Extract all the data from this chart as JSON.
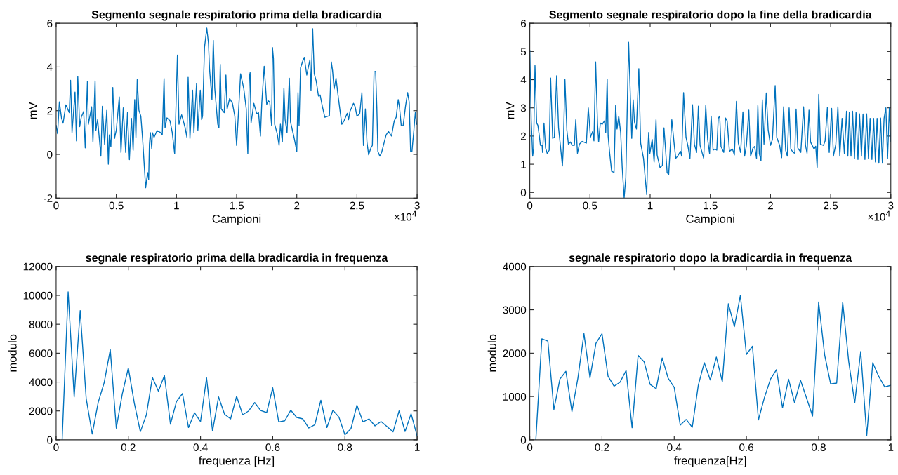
{
  "chart_data": [
    {
      "type": "line",
      "title": "Segmento segnale respiratorio prima della bradicardia",
      "xlabel": "Campioni",
      "ylabel": "mV",
      "annotations": [
        "×10$^{4}$"
      ],
      "x": [
        0,
        0.012,
        0.027,
        0.045,
        0.058,
        0.081,
        0.109,
        0.12,
        0.132,
        0.157,
        0.169,
        0.18,
        0.196,
        0.209,
        0.229,
        0.242,
        0.26,
        0.268,
        0.295,
        0.306,
        0.324,
        0.331,
        0.345,
        0.372,
        0.384,
        0.403,
        0.421,
        0.434,
        0.442,
        0.455,
        0.471,
        0.485,
        0.5,
        0.525,
        0.539,
        0.558,
        0.578,
        0.593,
        0.609,
        0.626,
        0.64,
        0.653,
        0.663,
        0.674,
        0.688,
        0.704,
        0.719,
        0.744,
        0.76,
        0.769,
        0.775,
        0.783,
        0.795,
        0.8,
        0.814,
        0.839,
        0.868,
        0.882,
        0.897,
        0.905,
        0.921,
        0.946,
        0.965,
        0.985,
        1.008,
        1.021,
        1.043,
        1.072,
        1.087,
        1.097,
        1.112,
        1.134,
        1.145,
        1.167,
        1.178,
        1.198,
        1.209,
        1.217,
        1.233,
        1.252,
        1.266,
        1.275,
        1.295,
        1.306,
        1.318,
        1.343,
        1.353,
        1.364,
        1.372,
        1.397,
        1.411,
        1.421,
        1.442,
        1.465,
        1.485,
        1.5,
        1.518,
        1.533,
        1.56,
        1.58,
        1.593,
        1.605,
        1.612,
        1.62,
        1.643,
        1.667,
        1.682,
        1.698,
        1.709,
        1.729,
        1.75,
        1.764,
        1.775,
        1.791,
        1.798,
        1.806,
        1.816,
        1.837,
        1.853,
        1.864,
        1.88,
        1.893,
        1.903,
        1.919,
        1.938,
        1.948,
        1.977,
        2,
        2.01,
        2.019,
        2.031,
        2.05,
        2.062,
        2.083,
        2.109,
        2.118,
        2.132,
        2.145,
        2.161,
        2.18,
        2.194,
        2.213,
        2.233,
        2.271,
        2.287,
        2.297,
        2.31,
        2.326,
        2.345,
        2.374,
        2.393,
        2.419,
        2.43,
        2.442,
        2.471,
        2.485,
        2.5,
        2.523,
        2.541,
        2.554,
        2.57,
        2.583,
        2.597,
        2.616,
        2.628,
        2.642,
        2.655,
        2.665,
        2.674,
        2.69,
        2.705,
        2.717,
        2.742,
        2.762,
        2.787,
        2.81,
        2.826,
        2.843,
        2.853,
        2.868,
        2.884,
        2.903,
        2.921,
        2.934,
        2.946,
        2.957,
        2.973,
        2.985,
        2.996
      ],
      "series": [
        {
          "color": "#0072bd",
          "values": [
            1.32,
            0.95,
            2.4,
            1.65,
            1.43,
            2.27,
            1.91,
            3.39,
            1.0,
            2.85,
            0.62,
            3.56,
            1.27,
            1.7,
            1.97,
            0.3,
            3.34,
            1.38,
            2.18,
            0.57,
            3.37,
            1.11,
            1.59,
            -0.08,
            2.2,
            0.46,
            2.02,
            -0.45,
            0.89,
            0.35,
            3.06,
            0.73,
            1.11,
            2.63,
            0.09,
            2.13,
            0.09,
            1.91,
            -0.24,
            1.65,
            0.19,
            2.51,
            0.78,
            3.42,
            2.02,
            1.75,
            0.68,
            -1.53,
            -0.83,
            -1.15,
            0.46,
            1.0,
            0.25,
            1.0,
            0.78,
            1.09,
            1.0,
            0.89,
            3.47,
            1.22,
            1.67,
            1.54,
            1.0,
            0.03,
            4.55,
            1.38,
            1.81,
            1.22,
            0.78,
            3.53,
            0.73,
            2.94,
            1.0,
            3.24,
            1.11,
            2.94,
            1.59,
            1.75,
            4.89,
            5.78,
            5.09,
            3.9,
            2.51,
            5.22,
            3.04,
            1.38,
            1.22,
            4.12,
            2.08,
            1.91,
            3.63,
            2.08,
            2.56,
            2.34,
            1.75,
            0.41,
            2.18,
            3.69,
            2.99,
            2.08,
            0.03,
            3.53,
            3.74,
            1.43,
            2.34,
            1.86,
            1.91,
            0.84,
            2.34,
            4.03,
            2.29,
            2.45,
            2.4,
            1.32,
            4.89,
            4.39,
            1.38,
            0.95,
            0.41,
            1.38,
            0.57,
            3.04,
            1.59,
            1.0,
            3.49,
            1.48,
            0.78,
            0.14,
            2.83,
            1.32,
            3.96,
            4.28,
            4.44,
            3.63,
            4.33,
            2.94,
            5.75,
            3.69,
            3.37,
            2.67,
            2.72,
            2.18,
            1.7,
            1.77,
            4.23,
            3.85,
            2.99,
            3.49,
            2.61,
            1.38,
            1.54,
            1.88,
            1.59,
            1.97,
            2.34,
            2.18,
            1.75,
            1.86,
            2.83,
            0.41,
            2.08,
            0.57,
            -0.02,
            0.3,
            0.41,
            3.77,
            3.8,
            2.18,
            0.14,
            -0.08,
            0.09,
            0.35,
            0.89,
            1.05,
            0.84,
            1.54,
            1.7,
            2.51,
            2.18,
            1.32,
            1.32,
            2.18,
            2.83,
            2.4,
            0.14,
            0.14,
            1.11,
            1.91,
            1.38
          ]
        }
      ],
      "xlim": [
        0,
        3
      ],
      "ylim": [
        -2,
        6
      ],
      "xticks": [
        0,
        0.5,
        1,
        1.5,
        2,
        2.5,
        3
      ],
      "yticks": [
        -2,
        0,
        2,
        4,
        6
      ]
    },
    {
      "type": "line",
      "title": "Segmento segnale respiratorio dopo la fine della bradicardia",
      "xlabel": "Campioni",
      "ylabel": "mV",
      "annotations": [
        "×10$^{4}$"
      ],
      "x": [
        0,
        0.012,
        0.024,
        0.031,
        0.043,
        0.057,
        0.067,
        0.078,
        0.088,
        0.102,
        0.106,
        0.118,
        0.131,
        0.145,
        0.161,
        0.173,
        0.19,
        0.204,
        0.223,
        0.239,
        0.259,
        0.271,
        0.278,
        0.292,
        0.308,
        0.321,
        0.337,
        0.353,
        0.37,
        0.382,
        0.396,
        0.412,
        0.435,
        0.47,
        0.486,
        0.504,
        0.523,
        0.533,
        0.547,
        0.563,
        0.572,
        0.586,
        0.602,
        0.621,
        0.631,
        0.643,
        0.651,
        0.664,
        0.68,
        0.7,
        0.713,
        0.725,
        0.739,
        0.755,
        0.768,
        0.784,
        0.798,
        0.821,
        0.847,
        0.859,
        0.87,
        0.886,
        0.906,
        0.921,
        0.945,
        0.96,
        0.972,
        0.98,
        0.988,
        0.998,
        1.017,
        1.033,
        1.049,
        1.058,
        1.082,
        1.102,
        1.115,
        1.125,
        1.141,
        1.154,
        1.18,
        1.2,
        1.213,
        1.229,
        1.252,
        1.262,
        1.278,
        1.298,
        1.313,
        1.331,
        1.352,
        1.368,
        1.386,
        1.401,
        1.415,
        1.445,
        1.462,
        1.478,
        1.494,
        1.507,
        1.523,
        1.539,
        1.554,
        1.566,
        1.578,
        1.589,
        1.612,
        1.626,
        1.64,
        1.659,
        1.684,
        1.7,
        1.717,
        1.733,
        1.752,
        1.771,
        1.785,
        1.8,
        1.82,
        1.835,
        1.855,
        1.868,
        1.884,
        1.895,
        1.907,
        1.921,
        1.932,
        1.946,
        1.965,
        1.981,
        2,
        2.016,
        2.039,
        2.052,
        2.076,
        2.093,
        2.109,
        2.126,
        2.14,
        2.155,
        2.169,
        2.188,
        2.202,
        2.213,
        2.227,
        2.252,
        2.275,
        2.291,
        2.304,
        2.32,
        2.333,
        2.362,
        2.376,
        2.388,
        2.401,
        2.415,
        2.44,
        2.454,
        2.473,
        2.488,
        2.508,
        2.523,
        2.543,
        2.56,
        2.576,
        2.595,
        2.614,
        2.632,
        2.643,
        2.655,
        2.669,
        2.682,
        2.698,
        2.711,
        2.727,
        2.74,
        2.756,
        2.769,
        2.785,
        2.799,
        2.814,
        2.828,
        2.843,
        2.857,
        2.872,
        2.886,
        2.901,
        2.915,
        2.93,
        2.944,
        2.959,
        2.973,
        2.988,
        3
      ],
      "series": [
        {
          "color": "#0072bd",
          "values": [
            5.04,
            2.54,
            1.29,
            1.54,
            4.5,
            2.46,
            2.38,
            2.04,
            1.67,
            1.67,
            1.42,
            2.46,
            1.58,
            1.38,
            1.5,
            4.06,
            1.92,
            1.96,
            4.14,
            2.29,
            1.46,
            0.94,
            1.54,
            4.0,
            2.21,
            1.71,
            1.79,
            1.67,
            1.67,
            2.58,
            1.39,
            1.71,
            1.81,
            1.75,
            3.0,
            1.96,
            2.17,
            1.83,
            4.63,
            2.42,
            1.79,
            2.46,
            2.42,
            2.54,
            2.13,
            4.03,
            2.0,
            1.38,
            0.75,
            0.71,
            3.08,
            2.25,
            2.71,
            2.13,
            0.88,
            -0.19,
            0.54,
            5.33,
            1.92,
            3.29,
            2.5,
            2.25,
            4.39,
            1.75,
            1.21,
            0.46,
            -0.08,
            1.42,
            2.13,
            1.39,
            1.88,
            1.08,
            2.58,
            1.33,
            0.88,
            0.96,
            2.29,
            1.71,
            0.71,
            0.63,
            2.58,
            1.71,
            1.21,
            1.29,
            1.46,
            1.29,
            3.54,
            1.96,
            1.67,
            1.21,
            3.11,
            1.71,
            1.42,
            3.06,
            1.67,
            1.21,
            3.08,
            1.88,
            1.38,
            2.71,
            1.5,
            1.54,
            1.5,
            2.63,
            2.71,
            1.63,
            1.42,
            2.64,
            2.54,
            1.46,
            1.54,
            1.33,
            3.23,
            1.75,
            1.42,
            2.86,
            1.29,
            1.67,
            2.92,
            1.29,
            1.58,
            1.63,
            1.21,
            3.08,
            1.38,
            1.13,
            3.29,
            1.71,
            3.53,
            2.21,
            1.67,
            1.88,
            3.79,
            1.96,
            1.67,
            1.23,
            3.04,
            1.5,
            1.29,
            3.0,
            1.54,
            1.42,
            1.39,
            2.96,
            1.58,
            1.42,
            3.04,
            1.67,
            1.39,
            2.92,
            1.79,
            1.54,
            1.64,
            0.88,
            3.48,
            1.71,
            1.67,
            1.83,
            3.02,
            1.42,
            2.98,
            1.29,
            1.71,
            3.04,
            1.29,
            2.63,
            1.38,
            2.88,
            1.29,
            2.83,
            1.29,
            2.88,
            1.21,
            2.83,
            1.17,
            2.79,
            1.29,
            2.78,
            1.17,
            2.79,
            1.21,
            2.63,
            1.17,
            2.63,
            1.08,
            2.63,
            1.04,
            2.64,
            1.04,
            2.63,
            3.0,
            1.21,
            3.0,
            1.79
          ]
        }
      ],
      "xlim": [
        0,
        3
      ],
      "ylim": [
        -0.2,
        6
      ],
      "xticks": [
        0,
        0.5,
        1,
        1.5,
        2,
        2.5,
        3
      ],
      "yticks": [
        0,
        1,
        2,
        3,
        4,
        5,
        6
      ]
    },
    {
      "type": "line",
      "title": "segnale respiratorio prima della bradicardia in frequenza",
      "xlabel": "frequenza [Hz]",
      "ylabel": "modulo",
      "x": [
        0.0167,
        0.0333,
        0.05,
        0.0667,
        0.0833,
        0.1,
        0.1167,
        0.1333,
        0.15,
        0.1667,
        0.1833,
        0.2,
        0.2167,
        0.2333,
        0.25,
        0.2667,
        0.2833,
        0.3,
        0.3167,
        0.3333,
        0.35,
        0.3667,
        0.3833,
        0.4,
        0.4167,
        0.4333,
        0.45,
        0.4667,
        0.4833,
        0.5,
        0.5167,
        0.5333,
        0.55,
        0.5667,
        0.5833,
        0.6,
        0.6167,
        0.6333,
        0.65,
        0.6667,
        0.6833,
        0.7,
        0.7167,
        0.7333,
        0.75,
        0.7667,
        0.7833,
        0.8,
        0.8167,
        0.8333,
        0.85,
        0.8667,
        0.8833,
        0.9,
        0.9167,
        0.9333,
        0.95,
        0.9667,
        0.9833,
        1
      ],
      "series": [
        {
          "color": "#0072bd",
          "values": [
            0,
            10240,
            2970,
            8950,
            2860,
            400,
            2610,
            3980,
            6240,
            810,
            3180,
            4980,
            2530,
            560,
            1730,
            4320,
            3370,
            4450,
            1080,
            2650,
            3210,
            850,
            1870,
            1270,
            4290,
            610,
            2970,
            1770,
            1450,
            3020,
            1730,
            2000,
            2580,
            2030,
            1890,
            3600,
            1240,
            1320,
            2050,
            1550,
            1450,
            820,
            1050,
            2740,
            850,
            2050,
            1580,
            350,
            770,
            2400,
            1240,
            1450,
            970,
            1270,
            920,
            550,
            2000,
            580,
            1810,
            270
          ]
        }
      ],
      "xlim": [
        0,
        1
      ],
      "ylim": [
        0,
        12000
      ],
      "xticks": [
        0,
        0.2,
        0.4,
        0.6,
        0.8,
        1
      ],
      "yticks": [
        0,
        2000,
        4000,
        6000,
        8000,
        10000,
        12000
      ]
    },
    {
      "type": "line",
      "title": "segnale respiratorio dopo la bradicardia in frequenza",
      "xlabel": "frequenza[Hz]",
      "ylabel": "modulo",
      "x": [
        0.0167,
        0.0333,
        0.05,
        0.0667,
        0.0833,
        0.1,
        0.1167,
        0.1333,
        0.15,
        0.1667,
        0.1833,
        0.2,
        0.2167,
        0.2333,
        0.25,
        0.2667,
        0.2833,
        0.3,
        0.3167,
        0.3333,
        0.35,
        0.3667,
        0.3833,
        0.4,
        0.4167,
        0.4333,
        0.45,
        0.4667,
        0.4833,
        0.5,
        0.5167,
        0.5333,
        0.55,
        0.5667,
        0.5833,
        0.6,
        0.6167,
        0.6333,
        0.65,
        0.6667,
        0.6833,
        0.7,
        0.7167,
        0.7333,
        0.75,
        0.7667,
        0.7833,
        0.8,
        0.8167,
        0.8333,
        0.85,
        0.8667,
        0.8833,
        0.9,
        0.9167,
        0.9333,
        0.95,
        0.9667,
        0.9833,
        1
      ],
      "series": [
        {
          "color": "#0072bd",
          "values": [
            0,
            2330,
            2280,
            700,
            1400,
            1580,
            650,
            1430,
            2450,
            1430,
            2230,
            2450,
            1470,
            1240,
            1330,
            1600,
            280,
            1950,
            1800,
            1280,
            1180,
            1890,
            1420,
            1210,
            340,
            470,
            290,
            1260,
            1780,
            1380,
            1910,
            1340,
            3140,
            2610,
            3330,
            1970,
            2160,
            460,
            980,
            1400,
            1620,
            740,
            1400,
            860,
            1370,
            960,
            550,
            3180,
            1960,
            1290,
            1310,
            3180,
            1810,
            850,
            2040,
            100,
            1780,
            1460,
            1220,
            1260
          ]
        }
      ],
      "xlim": [
        0,
        1
      ],
      "ylim": [
        0,
        4000
      ],
      "xticks": [
        0,
        0.2,
        0.4,
        0.6,
        0.8,
        1
      ],
      "yticks": [
        0,
        1000,
        2000,
        3000,
        4000
      ]
    }
  ]
}
